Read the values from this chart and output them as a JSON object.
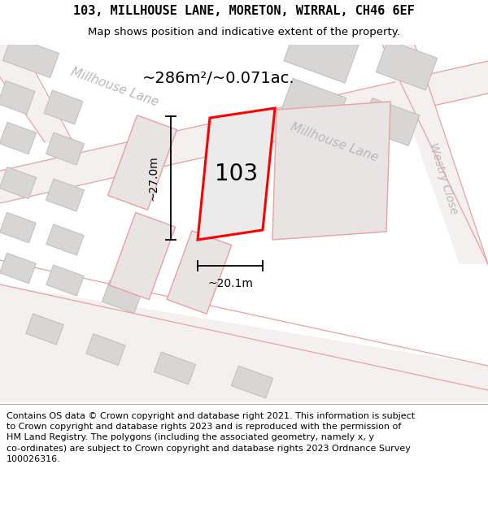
{
  "title_line1": "103, MILLHOUSE LANE, MORETON, WIRRAL, CH46 6EF",
  "title_line2": "Map shows position and indicative extent of the property.",
  "footer_lines": [
    "Contains OS data © Crown copyright and database right 2021. This information is subject to Crown copyright and database rights 2023 and is reproduced with the permission of",
    "HM Land Registry. The polygons (including the associated geometry, namely x, y co-ordinates) are subject to Crown copyright and database rights 2023 Ordnance Survey",
    "100026316."
  ],
  "area_label": "~286m²/~0.071ac.",
  "width_label": "~20.1m",
  "height_label": "~27.0m",
  "plot_number": "103",
  "map_bg": "#f0eeee",
  "road_fill": "#f5f0f0",
  "road_edge": "#e8a0a0",
  "building_fill": "#d8d5d5",
  "building_edge": "#c0bcbc",
  "plot_fill": "#ebebeb",
  "plot_edge": "#ff0000",
  "neighbor_fill": "#e8e4e4",
  "neighbor_edge": "#e8a0a0",
  "street_label_color": "#b8b8b8",
  "area_label_fontsize": 14,
  "plot_number_fontsize": 20,
  "street_label_fontsize": 11,
  "dim_fontsize": 10,
  "title_fontsize": 11,
  "subtitle_fontsize": 9.5,
  "footer_fontsize": 8.0
}
